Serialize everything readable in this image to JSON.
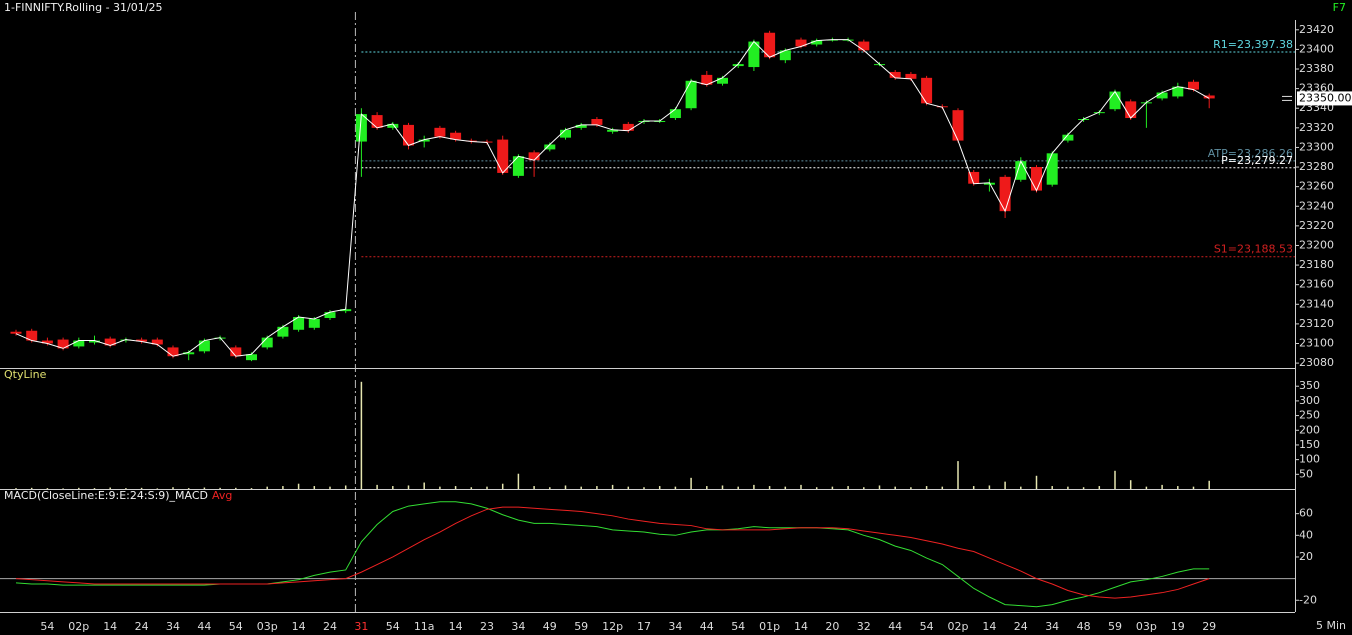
{
  "shortcut": "F7",
  "interval": "5 Min",
  "chart_data": [
    {
      "type": "candlestick",
      "title": "1-FINNIFTY.Rolling - 31/01/25",
      "categories": [
        null,
        null,
        "54",
        null,
        "02p",
        null,
        "14",
        null,
        "24",
        null,
        "34",
        null,
        "44",
        null,
        "54",
        null,
        "03p",
        null,
        "14",
        null,
        "24",
        null,
        "31",
        null,
        "54",
        null,
        "11a",
        null,
        "14",
        null,
        "23",
        null,
        "34",
        null,
        "49",
        null,
        "59",
        null,
        "12p",
        null,
        "17",
        null,
        "34",
        null,
        "44",
        null,
        "54",
        null,
        "01p",
        null,
        "14",
        null,
        "20",
        null,
        "32",
        null,
        "44",
        null,
        "54",
        null,
        "02p",
        null,
        "14",
        null,
        "24",
        null,
        "34",
        null,
        "48",
        null,
        "59",
        null,
        "03p",
        null,
        "19",
        null,
        "29"
      ],
      "open": [
        23112,
        23113,
        23103,
        23104,
        23097,
        23101,
        23105,
        23103,
        23104,
        23104,
        23096,
        23089,
        23092,
        23105,
        23096,
        23083,
        23096,
        23107,
        23114,
        23116,
        23126,
        23133,
        23306,
        23333,
        23320,
        23323,
        23306,
        23320,
        23315,
        23307,
        23306,
        23308,
        23271,
        23295,
        23298,
        23310,
        23320,
        23329,
        23316,
        23324,
        23326,
        23327,
        23330,
        23340,
        23374,
        23365,
        23383,
        23382,
        23417,
        23389,
        23410,
        23405,
        23410,
        23410,
        23408,
        23385,
        23377,
        23375,
        23371,
        23342,
        23338,
        23275,
        23262,
        23270,
        23267,
        23280,
        23262,
        23307,
        23328,
        23335,
        23339,
        23347,
        23345,
        23350,
        23352,
        23367,
        23353
      ],
      "high": [
        23114,
        23115,
        23106,
        23106,
        23106,
        23108,
        23107,
        23106,
        23106,
        23106,
        23098,
        23093,
        23105,
        23108,
        23098,
        23091,
        23108,
        23119,
        23129,
        23127,
        23134,
        23137,
        23340,
        23336,
        23326,
        23325,
        23312,
        23322,
        23317,
        23309,
        23308,
        23312,
        23293,
        23297,
        23305,
        23320,
        23325,
        23331,
        23320,
        23326,
        23329,
        23329,
        23341,
        23370,
        23378,
        23373,
        23387,
        23410,
        23419,
        23401,
        23412,
        23411,
        23412,
        23412,
        23410,
        23387,
        23379,
        23377,
        23373,
        23344,
        23340,
        23277,
        23268,
        23272,
        23290,
        23282,
        23296,
        23315,
        23331,
        23338,
        23359,
        23349,
        23348,
        23358,
        23366,
        23369,
        23355
      ],
      "low": [
        23108,
        23101,
        23098,
        23093,
        23095,
        23099,
        23096,
        23101,
        23100,
        23097,
        23085,
        23083,
        23090,
        23103,
        23085,
        23082,
        23094,
        23105,
        23112,
        23114,
        23124,
        23131,
        23270,
        23318,
        23318,
        23298,
        23300,
        23309,
        23306,
        23304,
        23303,
        23272,
        23269,
        23270,
        23296,
        23308,
        23318,
        23321,
        23314,
        23315,
        23324,
        23325,
        23328,
        23338,
        23362,
        23363,
        23381,
        23378,
        23390,
        23386,
        23401,
        23403,
        23408,
        23408,
        23397,
        23383,
        23369,
        23368,
        23343,
        23339,
        23305,
        23261,
        23255,
        23228,
        23265,
        23254,
        23260,
        23305,
        23326,
        23333,
        23337,
        23328,
        23320,
        23348,
        23350,
        23357,
        23340
      ],
      "close": [
        23110,
        23103,
        23100,
        23095,
        23103,
        23103,
        23098,
        23104,
        23102,
        23099,
        23087,
        23091,
        23103,
        23106,
        23087,
        23089,
        23106,
        23117,
        23127,
        23125,
        23132,
        23135,
        23334,
        23320,
        23324,
        23302,
        23308,
        23311,
        23308,
        23306,
        23305,
        23274,
        23291,
        23287,
        23303,
        23318,
        23323,
        23323,
        23318,
        23317,
        23327,
        23327,
        23339,
        23368,
        23364,
        23371,
        23385,
        23408,
        23392,
        23399,
        23403,
        23409,
        23410,
        23410,
        23399,
        23385,
        23371,
        23370,
        23345,
        23341,
        23307,
        23263,
        23264,
        23235,
        23286,
        23256,
        23294,
        23313,
        23329,
        23336,
        23357,
        23330,
        23346,
        23356,
        23362,
        23359,
        23350
      ],
      "up_color": "#22ee22",
      "down_color": "#ee1a1a",
      "line_color": "#ffffff",
      "ylim": [
        23075,
        23430
      ],
      "yticks": [
        23080,
        23100,
        23120,
        23140,
        23160,
        23180,
        23200,
        23220,
        23240,
        23260,
        23280,
        23300,
        23320,
        23340,
        23360,
        23380,
        23400,
        23420
      ],
      "levels": [
        {
          "value": 23397.38,
          "label": "R1=23,397.38",
          "color": "#5fd7e0"
        },
        {
          "value": 23286.26,
          "label": "ATP=23,286.26",
          "color": "#5f8ea0"
        },
        {
          "value": 23279.27,
          "label": "P=23,279.27",
          "color": "#ffffff"
        },
        {
          "value": 23188.53,
          "label": "S1=23,188.53",
          "color": "#d02020"
        }
      ],
      "last_price": {
        "value": 23350,
        "label": "23350.00"
      }
    },
    {
      "type": "bar",
      "title": "QtyLine",
      "color": "#e6e6b0",
      "values": [
        3,
        4,
        3,
        2,
        4,
        3,
        5,
        3,
        4,
        2,
        6,
        3,
        5,
        4,
        4,
        3,
        8,
        10,
        18,
        10,
        8,
        12,
        365,
        14,
        10,
        12,
        22,
        8,
        10,
        6,
        8,
        18,
        52,
        10,
        6,
        12,
        8,
        10,
        14,
        8,
        6,
        10,
        8,
        38,
        10,
        12,
        8,
        14,
        10,
        8,
        14,
        6,
        8,
        10,
        6,
        12,
        8,
        6,
        10,
        8,
        95,
        10,
        12,
        25,
        8,
        45,
        10,
        8,
        6,
        10,
        62,
        30,
        8,
        14,
        10,
        8,
        28
      ],
      "ylim": [
        0,
        395
      ],
      "yticks": [
        50,
        100,
        150,
        200,
        250,
        300,
        350
      ]
    },
    {
      "type": "line",
      "series": [
        {
          "name": "MACD(CloseLine:E:9:E:24:S:9)_MACD",
          "color": "#33dd33",
          "values": [
            -4,
            -5,
            -5,
            -6,
            -6,
            -6,
            -6,
            -6,
            -6,
            -6,
            -6,
            -6,
            -6,
            -5,
            -5,
            -5,
            -5,
            -3,
            -1,
            3,
            6,
            8,
            34,
            50,
            62,
            67,
            69,
            71,
            71,
            69,
            65,
            59,
            54,
            51,
            51,
            50,
            49,
            48,
            45,
            44,
            43,
            41,
            40,
            43,
            45,
            45,
            46,
            48,
            47,
            47,
            47,
            47,
            46,
            45,
            40,
            36,
            30,
            26,
            19,
            13,
            2,
            -9,
            -17,
            -24,
            -25,
            -26,
            -24,
            -20,
            -17,
            -13,
            -8,
            -3,
            -1,
            2,
            6,
            9,
            9
          ]
        },
        {
          "name": "Avg",
          "color": "#ee2222",
          "values": [
            0,
            -1,
            -2,
            -3,
            -4,
            -5,
            -5,
            -5,
            -5,
            -5,
            -5,
            -5,
            -5,
            -5,
            -5,
            -5,
            -5,
            -4,
            -3,
            -2,
            -1,
            0,
            6,
            13,
            20,
            28,
            36,
            43,
            51,
            58,
            64,
            66,
            66,
            65,
            64,
            63,
            62,
            60,
            58,
            55,
            53,
            51,
            50,
            49,
            46,
            45,
            45,
            45,
            45,
            46,
            47,
            47,
            47,
            46,
            44,
            42,
            40,
            38,
            35,
            32,
            28,
            25,
            19,
            13,
            7,
            0,
            -5,
            -11,
            -15,
            -17,
            -18,
            -17,
            -15,
            -13,
            -10,
            -5,
            0
          ]
        }
      ],
      "ylim": [
        -29,
        80
      ],
      "yticks": [
        -20,
        20,
        40,
        60
      ]
    }
  ]
}
